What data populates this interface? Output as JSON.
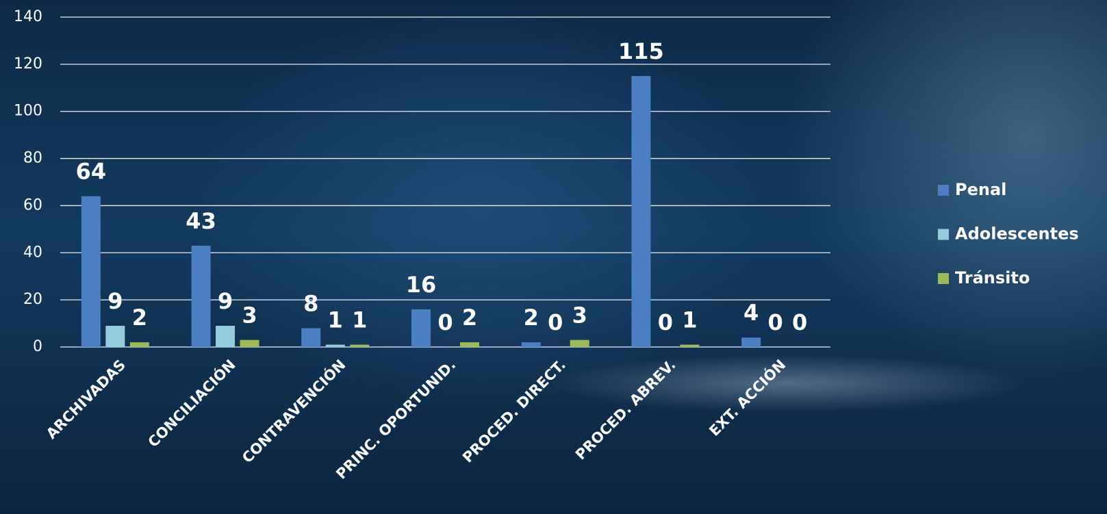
{
  "chart_data": {
    "type": "bar",
    "categories": [
      "ARCHIVADAS",
      "CONCILIACIÓN",
      "CONTRAVENCIÓN",
      "PRINC. OPORTUNID.",
      "PROCED. DIRECT.",
      "PROCED. ABREV.",
      "EXT. ACCIÓN"
    ],
    "series": [
      {
        "name": "Penal",
        "color": "#4a7fc1",
        "values": [
          64,
          43,
          8,
          16,
          2,
          115,
          4
        ]
      },
      {
        "name": "Adolescentes",
        "color": "#93cddd",
        "values": [
          9,
          9,
          1,
          0,
          0,
          0,
          0
        ]
      },
      {
        "name": "Tránsito",
        "color": "#9bbb59",
        "values": [
          2,
          3,
          1,
          2,
          3,
          1,
          0
        ]
      }
    ],
    "ylim": [
      0,
      140
    ],
    "yticks": [
      0,
      20,
      40,
      60,
      80,
      100,
      120,
      140
    ],
    "grid": true,
    "legend": "right"
  }
}
